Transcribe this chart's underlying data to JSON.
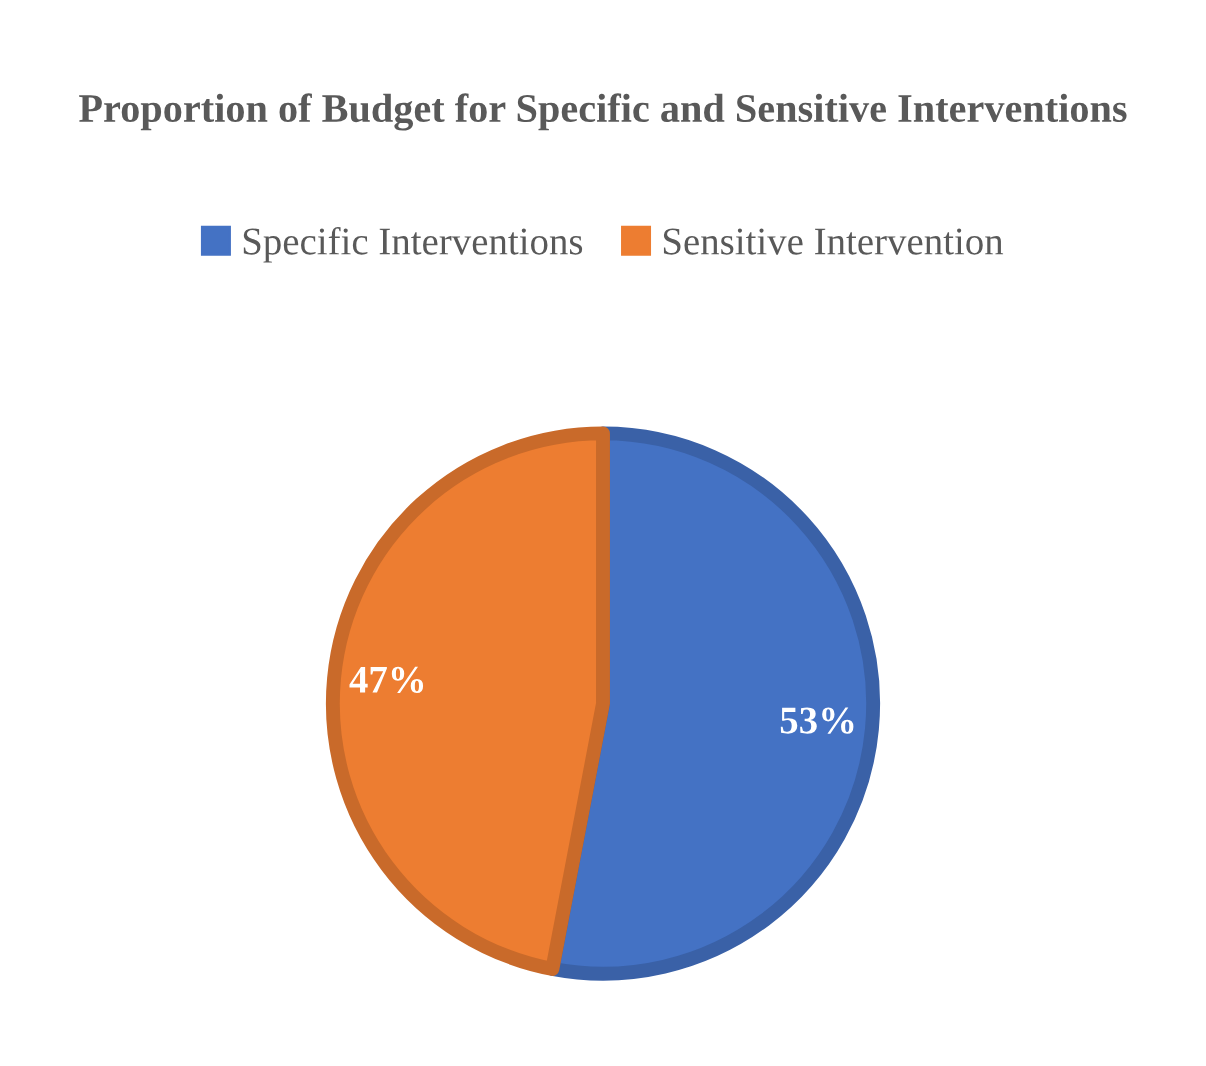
{
  "chart_data": {
    "type": "pie",
    "title": "Proportion of Budget for Specific and Sensitive Interventions",
    "categories": [
      "Specific Interventions",
      "Sensitive Intervention"
    ],
    "values": [
      53,
      47
    ],
    "colors": [
      "#4472c4",
      "#ed7d31"
    ],
    "value_labels": [
      "53%",
      "47%"
    ],
    "legend": "top"
  }
}
